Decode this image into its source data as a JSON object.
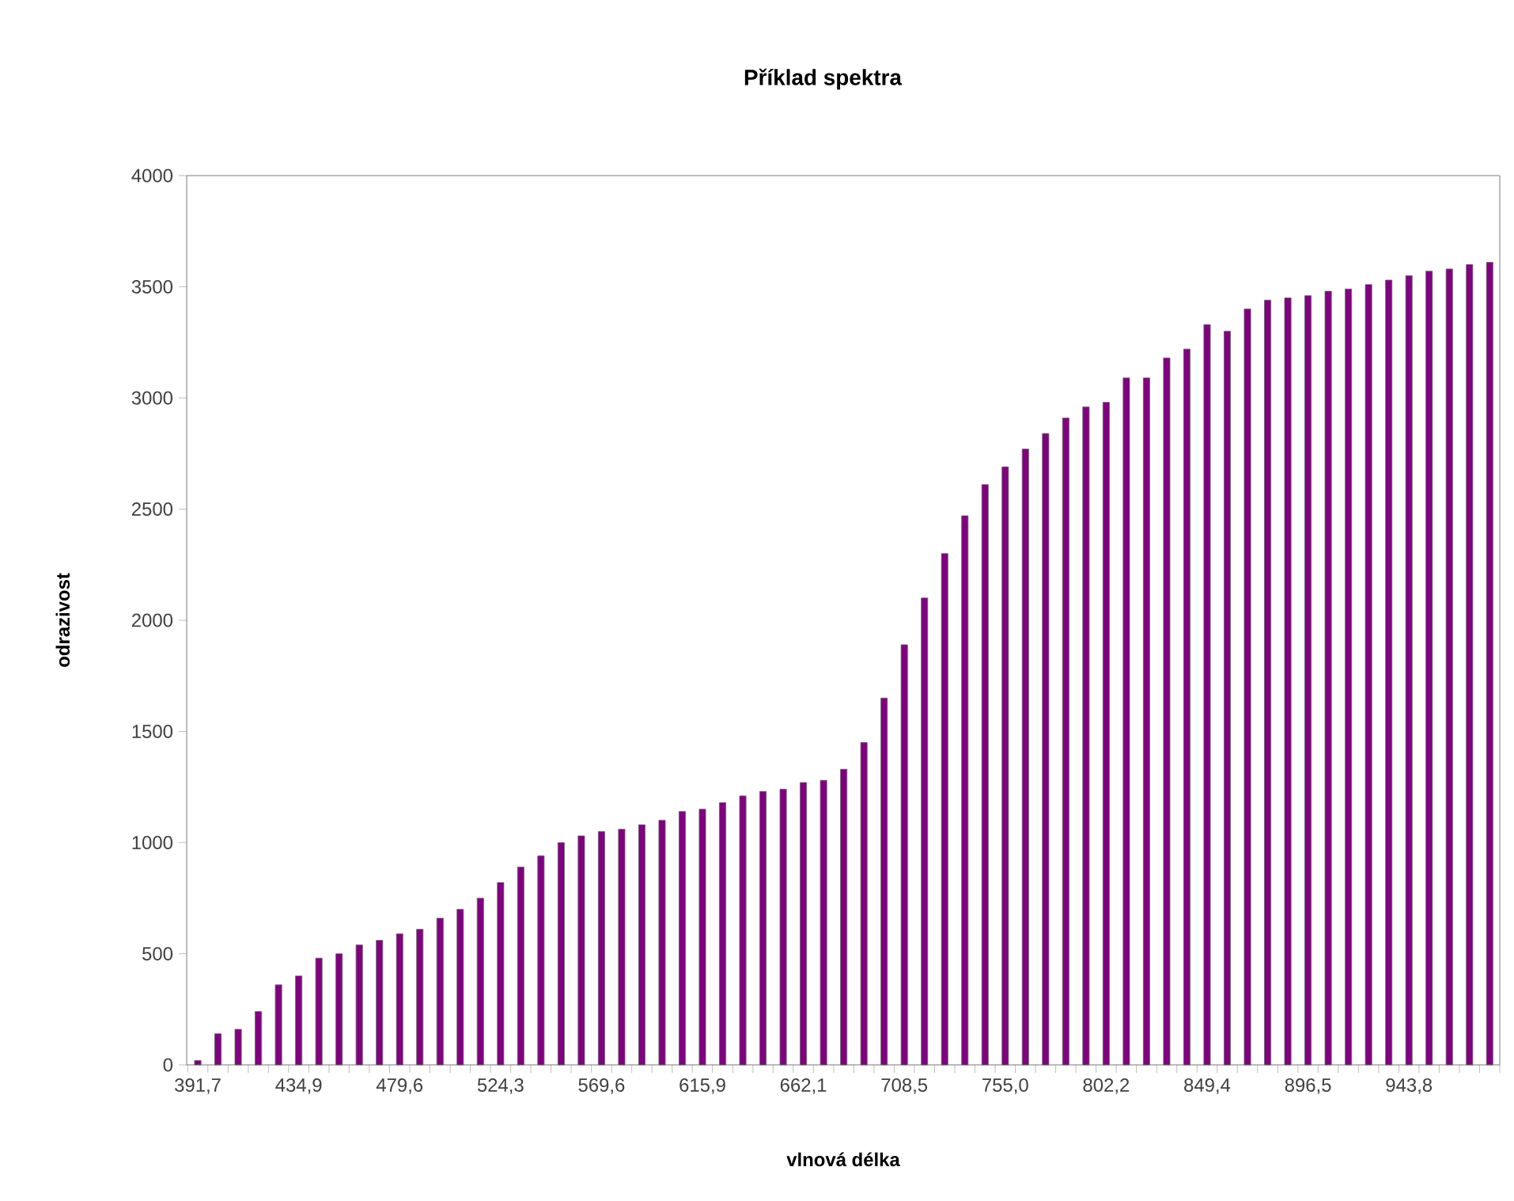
{
  "chart_data": {
    "type": "bar",
    "title": "Příklad spektra",
    "xlabel": "vlnová délka",
    "ylabel": "odrazivost",
    "categories": [
      "391,7",
      null,
      null,
      null,
      null,
      "434,9",
      null,
      null,
      null,
      null,
      "479,6",
      null,
      null,
      null,
      null,
      "524,3",
      null,
      null,
      null,
      null,
      "569,6",
      null,
      null,
      null,
      null,
      "615,9",
      null,
      null,
      null,
      null,
      "662,1",
      null,
      null,
      null,
      null,
      "708,5",
      null,
      null,
      null,
      null,
      "755,0",
      null,
      null,
      null,
      null,
      "802,2",
      null,
      null,
      null,
      null,
      "849,4",
      null,
      null,
      null,
      null,
      "896,5",
      null,
      null,
      null,
      null,
      "943,8",
      null,
      null,
      null,
      null
    ],
    "values": [
      20,
      140,
      160,
      240,
      360,
      400,
      480,
      500,
      540,
      560,
      590,
      610,
      660,
      700,
      750,
      820,
      890,
      940,
      1000,
      1030,
      1050,
      1060,
      1080,
      1100,
      1140,
      1150,
      1180,
      1210,
      1230,
      1240,
      1270,
      1280,
      1330,
      1450,
      1650,
      1890,
      2100,
      2300,
      2470,
      2610,
      2690,
      2770,
      2840,
      2910,
      2960,
      2980,
      3090,
      3090,
      3180,
      3220,
      3330,
      3300,
      3400,
      3440,
      3450,
      3460,
      3480,
      3490,
      3510,
      3530,
      3550,
      3570,
      3580,
      3600,
      3610
    ],
    "color": "#800080",
    "ylim": [
      0,
      4000
    ],
    "yticks": [
      0,
      500,
      1000,
      1500,
      2000,
      2500,
      3000,
      3500,
      4000
    ],
    "grid": false
  }
}
